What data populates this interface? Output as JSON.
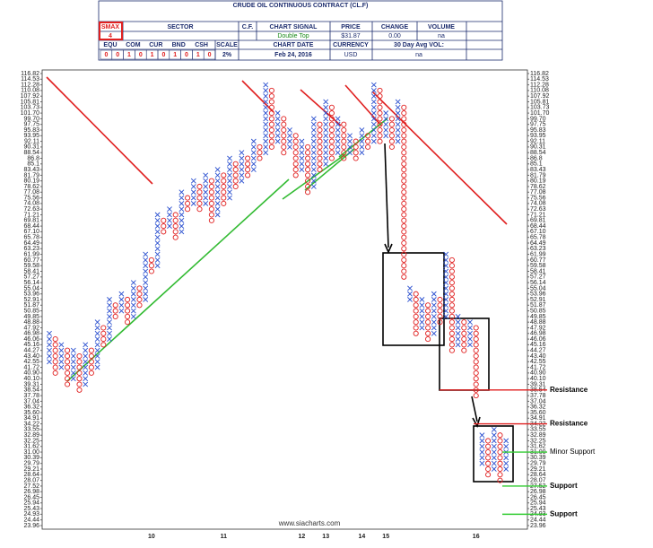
{
  "header": {
    "title": "CRUDE OIL CONTINUOUS CONTRACT (CL.F)",
    "smax_label": "SMAX",
    "smax": "4",
    "sector_label": "SECTOR",
    "cf_label": "C.F.",
    "signal_label": "CHART SIGNAL",
    "signal": "Double Top",
    "price_label": "PRICE",
    "price": "$31.87",
    "change_label": "CHANGE",
    "change": "0.00",
    "volume_label": "VOLUME",
    "volume": "na",
    "asset_labels": [
      "EQU",
      "COM",
      "CUR",
      "BND",
      "CSH"
    ],
    "asset_values": [
      "0",
      "0",
      "1",
      "0",
      "1",
      "0",
      "1",
      "0",
      "1",
      "0"
    ],
    "scale_label": "SCALE",
    "scale": "2%",
    "date_label": "CHART DATE",
    "date": "Feb 24, 2016",
    "currency_label": "CURRENCY",
    "currency": "USD",
    "avg_vol_label": "30 Day Avg VOL:",
    "avg_vol": "na"
  },
  "chart_data": {
    "type": "point-and-figure",
    "log_scale": true,
    "x_color": "#2a4fcf",
    "o_color": "#e02020",
    "watermark": "www.siacharts.com",
    "ylim": [
      23.96,
      116.82
    ],
    "yticks": [
      116.82,
      114.53,
      112.28,
      110.08,
      107.92,
      105.81,
      103.73,
      {
        "value": 101.7,
        "label": "101.70"
      },
      {
        "value": 99.7,
        "label": "99.70"
      },
      97.75,
      95.83,
      93.95,
      92.11,
      90.31,
      88.54,
      86.8,
      85.1,
      83.43,
      81.79,
      80.19,
      78.62,
      77.08,
      75.56,
      74.08,
      72.63,
      71.21,
      69.81,
      68.44,
      {
        "value": 67.1,
        "label": "67.10"
      },
      65.78,
      64.49,
      63.23,
      61.99,
      60.77,
      59.58,
      58.41,
      57.27,
      56.14,
      55.04,
      53.96,
      52.91,
      51.87,
      50.85,
      49.85,
      48.88,
      47.92,
      46.98,
      46.06,
      45.16,
      44.27,
      {
        "value": 43.4,
        "label": "43.40"
      },
      42.55,
      41.72,
      {
        "value": 40.9,
        "label": "40.90"
      },
      {
        "value": 40.1,
        "label": "40.10"
      },
      39.31,
      38.54,
      37.78,
      37.04,
      36.32,
      {
        "value": 35.6,
        "label": "35.60"
      },
      34.91,
      34.22,
      33.55,
      32.89,
      32.25,
      31.62,
      {
        "value": 31,
        "label": "31.00"
      },
      30.39,
      29.79,
      29.21,
      28.64,
      28.07,
      27.52,
      26.98,
      26.45,
      25.94,
      25.43,
      24.93,
      24.44,
      23.96
    ],
    "columns": [
      {
        "symbol": "X",
        "low": 42.55,
        "high": 46.98
      },
      {
        "symbol": "O",
        "low": 40.9,
        "high": 46.06
      },
      {
        "symbol": "X",
        "low": 41.72,
        "high": 45.16
      },
      {
        "symbol": "O",
        "low": 39.31,
        "high": 44.27
      },
      {
        "symbol": "X",
        "low": 40.1,
        "high": 44.27
      },
      {
        "symbol": "O",
        "low": 38.54,
        "high": 43.4
      },
      {
        "symbol": "X",
        "low": 39.31,
        "high": 45.16
      },
      {
        "symbol": "O",
        "low": 40.9,
        "high": 44.27
      },
      {
        "symbol": "X",
        "low": 41.72,
        "high": 48.88
      },
      {
        "symbol": "O",
        "low": 45.16,
        "high": 47.92
      },
      {
        "symbol": "X",
        "low": 46.06,
        "high": 52.91
      },
      {
        "symbol": "O",
        "low": 49.85,
        "high": 51.87
      },
      {
        "symbol": "X",
        "low": 50.85,
        "high": 53.96
      },
      {
        "symbol": "O",
        "low": 48.88,
        "high": 52.91
      },
      {
        "symbol": "X",
        "low": 49.85,
        "high": 56.14
      },
      {
        "symbol": "O",
        "low": 51.87,
        "high": 55.04
      },
      {
        "symbol": "X",
        "low": 52.91,
        "high": 61.99
      },
      {
        "symbol": "O",
        "low": 58.41,
        "high": 60.77
      },
      {
        "symbol": "X",
        "low": 59.58,
        "high": 71.21
      },
      {
        "symbol": "O",
        "low": 67.1,
        "high": 69.81
      },
      {
        "symbol": "X",
        "low": 68.44,
        "high": 72.63
      },
      {
        "symbol": "O",
        "low": 65.78,
        "high": 71.21
      },
      {
        "symbol": "X",
        "low": 67.1,
        "high": 77.08
      },
      {
        "symbol": "O",
        "low": 72.63,
        "high": 75.56
      },
      {
        "symbol": "X",
        "low": 74.08,
        "high": 80.19
      },
      {
        "symbol": "O",
        "low": 72.63,
        "high": 78.62
      },
      {
        "symbol": "X",
        "low": 74.08,
        "high": 81.79
      },
      {
        "symbol": "O",
        "low": 69.81,
        "high": 80.19
      },
      {
        "symbol": "X",
        "low": 71.21,
        "high": 83.43
      },
      {
        "symbol": "O",
        "low": 74.08,
        "high": 81.79
      },
      {
        "symbol": "X",
        "low": 75.56,
        "high": 86.8
      },
      {
        "symbol": "O",
        "low": 78.62,
        "high": 85.1
      },
      {
        "symbol": "X",
        "low": 80.19,
        "high": 88.54
      },
      {
        "symbol": "O",
        "low": 81.79,
        "high": 86.8
      },
      {
        "symbol": "X",
        "low": 83.43,
        "high": 92.11
      },
      {
        "symbol": "O",
        "low": 86.8,
        "high": 90.31
      },
      {
        "symbol": "X",
        "low": 88.54,
        "high": 112.28
      },
      {
        "symbol": "O",
        "low": 90.31,
        "high": 110.08
      },
      {
        "symbol": "X",
        "low": 92.11,
        "high": 101.7
      },
      {
        "symbol": "O",
        "low": 88.54,
        "high": 99.7
      },
      {
        "symbol": "X",
        "low": 90.31,
        "high": 95.83
      },
      {
        "symbol": "O",
        "low": 81.79,
        "high": 93.95
      },
      {
        "symbol": "X",
        "low": 83.43,
        "high": 92.11
      },
      {
        "symbol": "O",
        "low": 77.08,
        "high": 90.31
      },
      {
        "symbol": "X",
        "low": 78.62,
        "high": 99.7
      },
      {
        "symbol": "O",
        "low": 83.43,
        "high": 97.75
      },
      {
        "symbol": "X",
        "low": 85.1,
        "high": 105.81
      },
      {
        "symbol": "O",
        "low": 86.8,
        "high": 103.73
      },
      {
        "symbol": "X",
        "low": 88.54,
        "high": 99.7
      },
      {
        "symbol": "O",
        "low": 86.8,
        "high": 97.75
      },
      {
        "symbol": "X",
        "low": 88.54,
        "high": 93.95
      },
      {
        "symbol": "O",
        "low": 86.8,
        "high": 92.11
      },
      {
        "symbol": "X",
        "low": 88.54,
        "high": 95.83
      },
      {
        "symbol": "O",
        "low": 90.31,
        "high": 93.95
      },
      {
        "symbol": "X",
        "low": 92.11,
        "high": 112.28
      },
      {
        "symbol": "O",
        "low": 92.11,
        "high": 110.08
      },
      {
        "symbol": "X",
        "low": 93.95,
        "high": 101.7
      },
      {
        "symbol": "O",
        "low": 90.31,
        "high": 99.7
      },
      {
        "symbol": "X",
        "low": 92.11,
        "high": 105.81
      },
      {
        "symbol": "O",
        "low": 57.27,
        "high": 103.73
      },
      {
        "symbol": "X",
        "low": 52.91,
        "high": 55.04
      },
      {
        "symbol": "O",
        "low": 46.98,
        "high": 53.96
      },
      {
        "symbol": "X",
        "low": 47.92,
        "high": 52.91
      },
      {
        "symbol": "O",
        "low": 46.06,
        "high": 51.87
      },
      {
        "symbol": "X",
        "low": 46.98,
        "high": 53.96
      },
      {
        "symbol": "O",
        "low": 48.88,
        "high": 52.91
      },
      {
        "symbol": "X",
        "low": 49.85,
        "high": 61.99
      },
      {
        "symbol": "O",
        "low": 44.27,
        "high": 60.77
      },
      {
        "symbol": "X",
        "low": 45.16,
        "high": 49.85
      },
      {
        "symbol": "O",
        "low": 44.27,
        "high": 48.88
      },
      {
        "symbol": "X",
        "low": 45.16,
        "high": 48.88
      },
      {
        "symbol": "O",
        "low": 37.78,
        "high": 47.92
      },
      {
        "symbol": "X",
        "low": 29.79,
        "high": 32.89
      },
      {
        "symbol": "O",
        "low": 28.64,
        "high": 32.25
      },
      {
        "symbol": "X",
        "low": 29.21,
        "high": 33.55
      },
      {
        "symbol": "O",
        "low": 28.07,
        "high": 32.89
      },
      {
        "symbol": "X",
        "low": 29.21,
        "high": 32.25
      }
    ],
    "year_markers": [
      {
        "label": "10",
        "column": 17
      },
      {
        "label": "11",
        "column": 29
      },
      {
        "label": "12",
        "column": 42
      },
      {
        "label": "13",
        "column": 46
      },
      {
        "label": "14",
        "column": 52
      },
      {
        "label": "15",
        "column": 56
      },
      {
        "label": "16",
        "column": 71
      }
    ],
    "levels": [
      {
        "label": "Resistance",
        "value": 38.54,
        "color": "#e02020"
      },
      {
        "label": "Resistance",
        "value": 34.22,
        "color": "#e02020"
      },
      {
        "label": "Minor Support",
        "value": 31,
        "color": "#33cc33"
      },
      {
        "label": "Support",
        "value": 27.52,
        "color": "#33cc33"
      },
      {
        "label": "Support",
        "value": 24.93,
        "color": "#33cc33"
      }
    ]
  }
}
